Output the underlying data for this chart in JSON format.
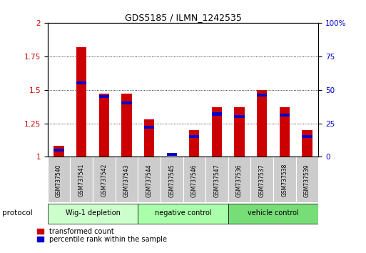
{
  "title": "GDS5185 / ILMN_1242535",
  "samples": [
    "GSM737540",
    "GSM737541",
    "GSM737542",
    "GSM737543",
    "GSM737544",
    "GSM737545",
    "GSM737546",
    "GSM737547",
    "GSM737536",
    "GSM737537",
    "GSM737538",
    "GSM737539"
  ],
  "red_values": [
    1.08,
    1.82,
    1.47,
    1.47,
    1.28,
    1.0,
    1.2,
    1.37,
    1.37,
    1.5,
    1.37,
    1.2
  ],
  "blue_pct": [
    5,
    55,
    45,
    40,
    22,
    2,
    15,
    32,
    30,
    46,
    31,
    15
  ],
  "ylim_left": [
    1.0,
    2.0
  ],
  "ylim_right": [
    0,
    100
  ],
  "yticks_left": [
    1.0,
    1.25,
    1.5,
    1.75,
    2.0
  ],
  "yticks_right": [
    0,
    25,
    50,
    75,
    100
  ],
  "groups": [
    {
      "label": "Wig-1 depletion",
      "start": 0,
      "end": 4
    },
    {
      "label": "negative control",
      "start": 4,
      "end": 8
    },
    {
      "label": "vehicle control",
      "start": 8,
      "end": 12
    }
  ],
  "group_colors": [
    "#ccffcc",
    "#aaffaa",
    "#77dd77"
  ],
  "bar_color_red": "#cc0000",
  "bar_color_blue": "#0000cc",
  "sample_box_color": "#cccccc",
  "protocol_label": "protocol",
  "legend_red": "transformed count",
  "legend_blue": "percentile rank within the sample"
}
